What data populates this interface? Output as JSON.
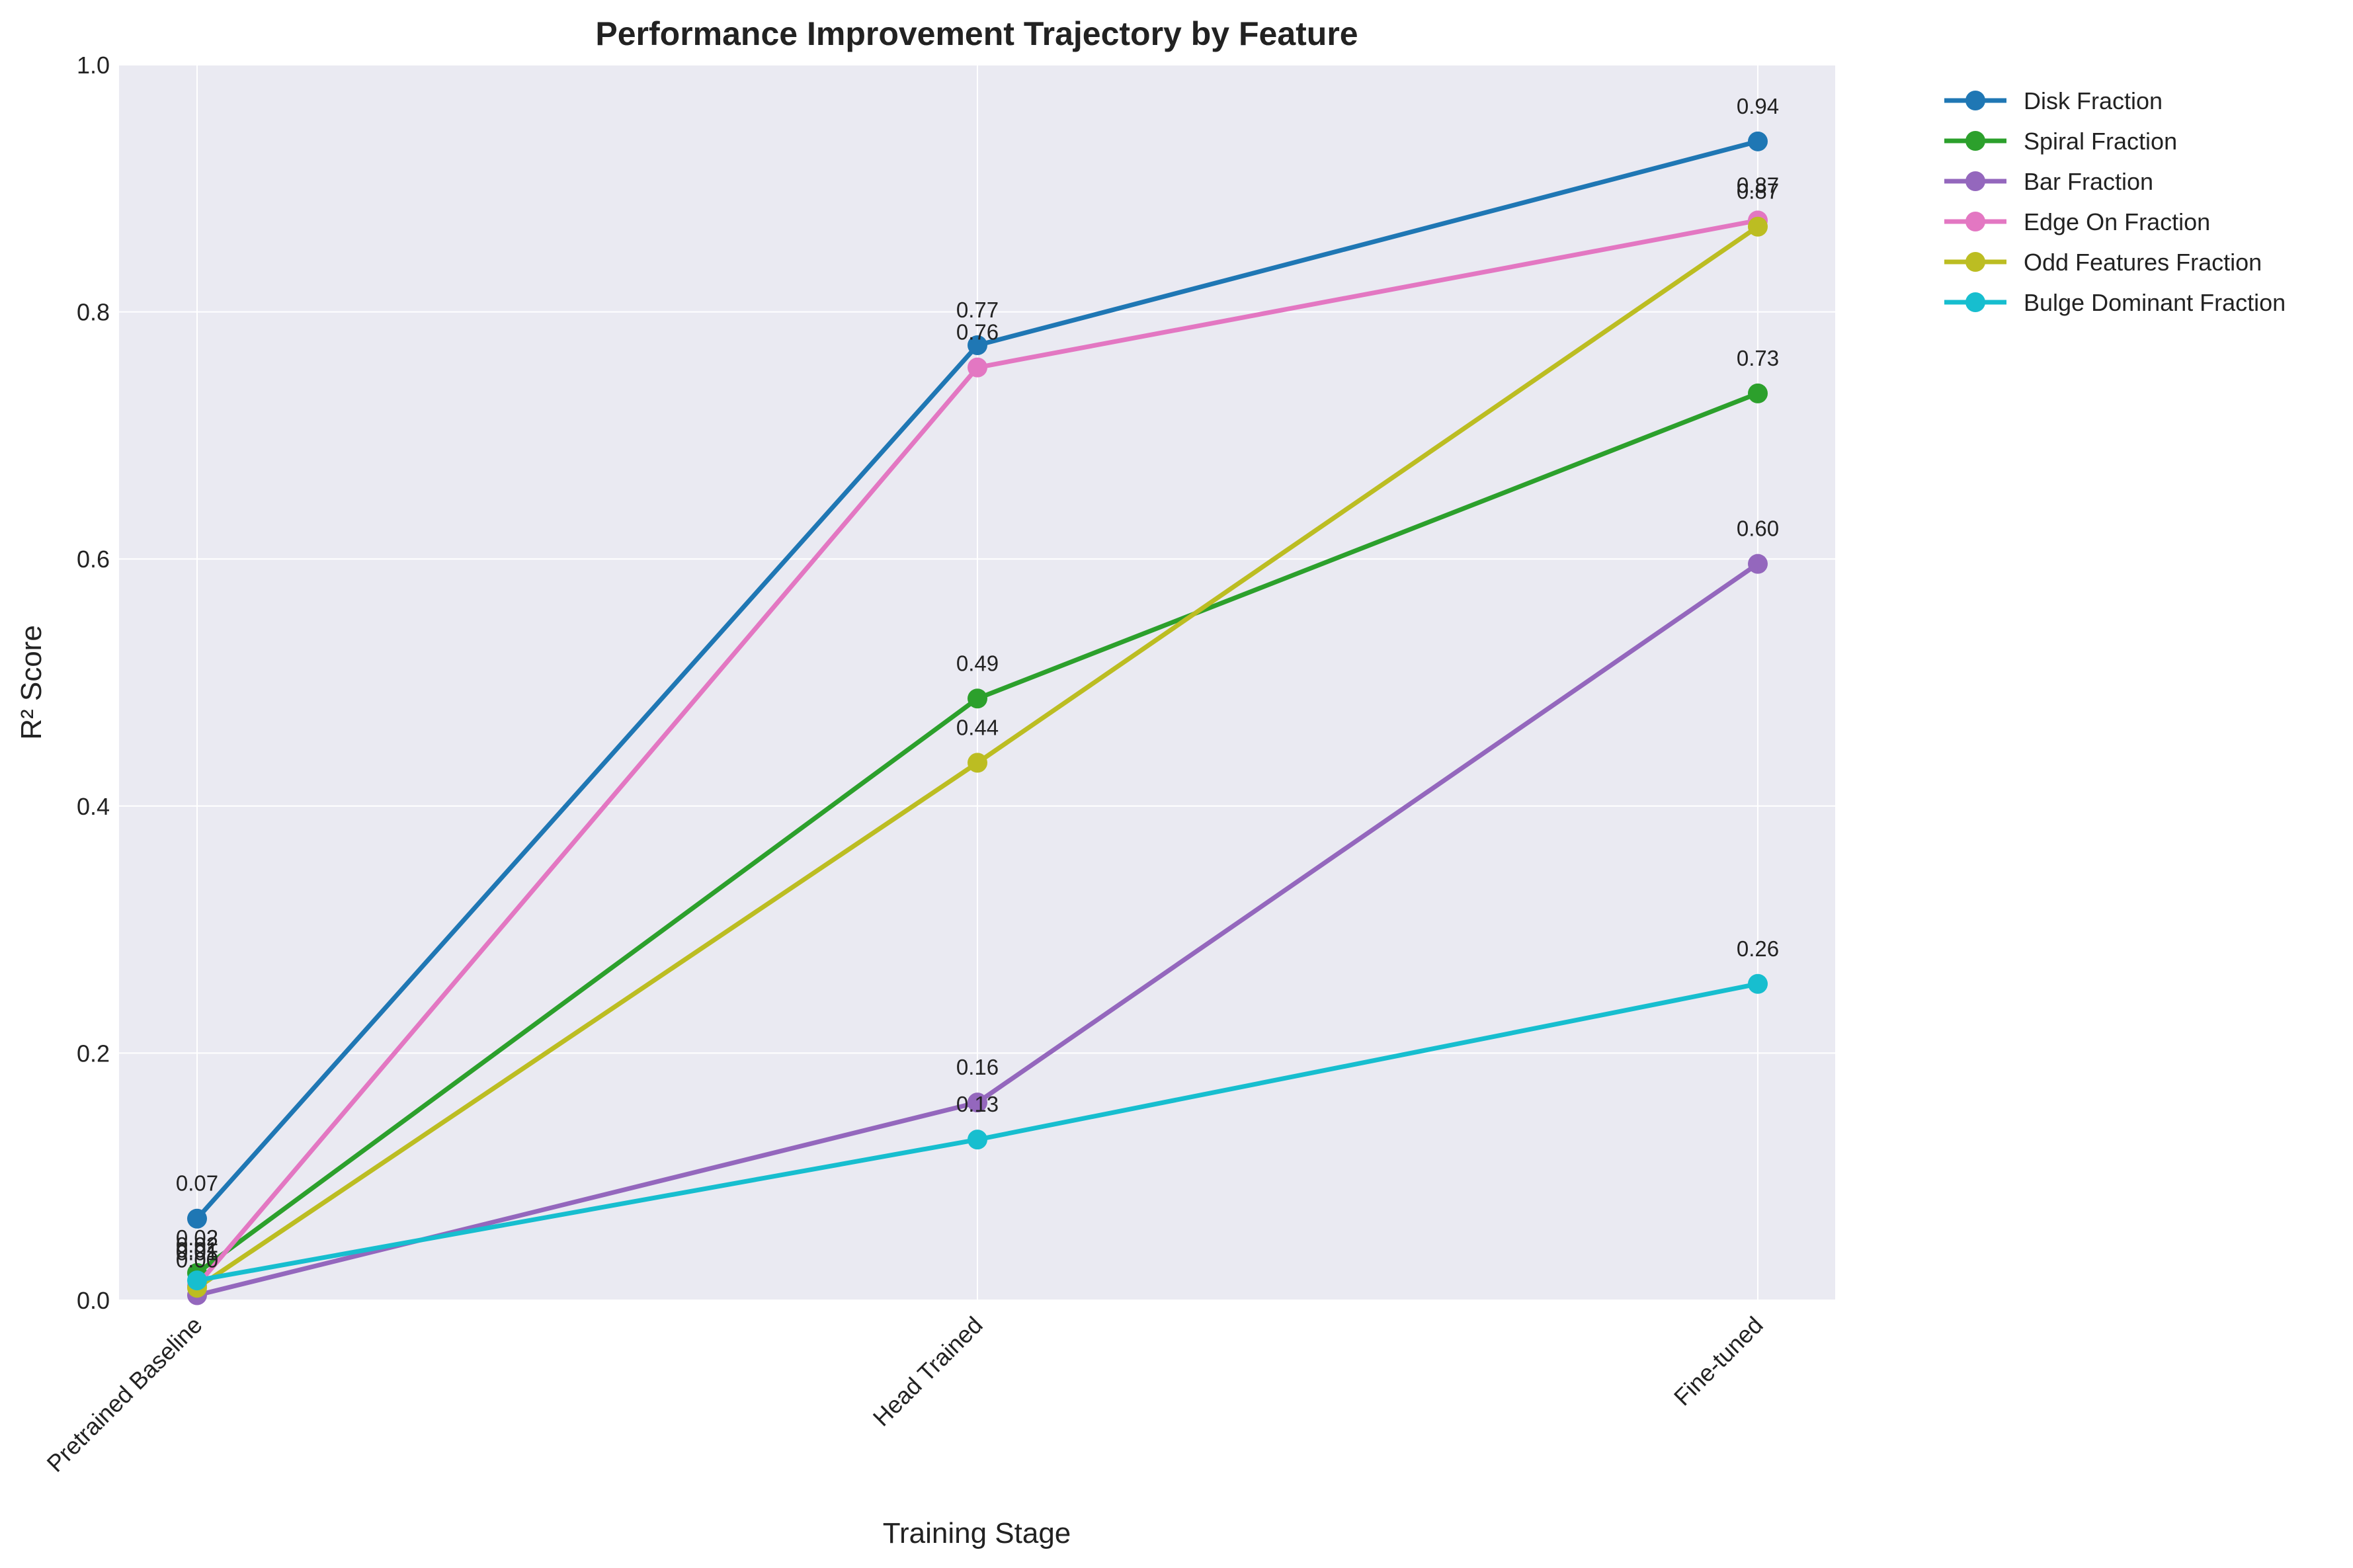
{
  "chart_data": {
    "type": "line",
    "title": "Performance Improvement Trajectory by Feature",
    "xlabel": "Training Stage",
    "ylabel": "R² Score",
    "categories": [
      "Pretrained Baseline",
      "Head Trained",
      "Fine-tuned"
    ],
    "ylim": [
      0,
      1.0
    ],
    "yticks": [
      "0.0",
      "0.2",
      "0.4",
      "0.6",
      "0.8",
      "1.0"
    ],
    "grid": true,
    "legend_position": "outside-top-right",
    "series": [
      {
        "name": "Disk Fraction",
        "color": "#1f77b4",
        "values": [
          0.066,
          0.773,
          0.938
        ],
        "labels": [
          "0.07",
          "0.77",
          "0.94"
        ]
      },
      {
        "name": "Spiral Fraction",
        "color": "#2ca02c",
        "values": [
          0.022,
          0.487,
          0.734
        ],
        "labels": [
          "0.02",
          "0.49",
          "0.73"
        ]
      },
      {
        "name": "Bar Fraction",
        "color": "#9467bd",
        "values": [
          0.004,
          0.16,
          0.596
        ],
        "labels": [
          "0.00",
          "0.16",
          "0.60"
        ]
      },
      {
        "name": "Edge On Fraction",
        "color": "#e377c2",
        "values": [
          0.012,
          0.755,
          0.874
        ],
        "labels": [
          "0.01",
          "0.76",
          "0.87"
        ]
      },
      {
        "name": "Odd Features Fraction",
        "color": "#bcbd22",
        "values": [
          0.01,
          0.435,
          0.869
        ],
        "labels": [
          "0.01",
          "0.44",
          "0.87"
        ]
      },
      {
        "name": "Bulge Dominant Fraction",
        "color": "#17becf",
        "values": [
          0.016,
          0.13,
          0.256
        ],
        "labels": [
          "0.02",
          "0.13",
          "0.26"
        ]
      }
    ]
  }
}
